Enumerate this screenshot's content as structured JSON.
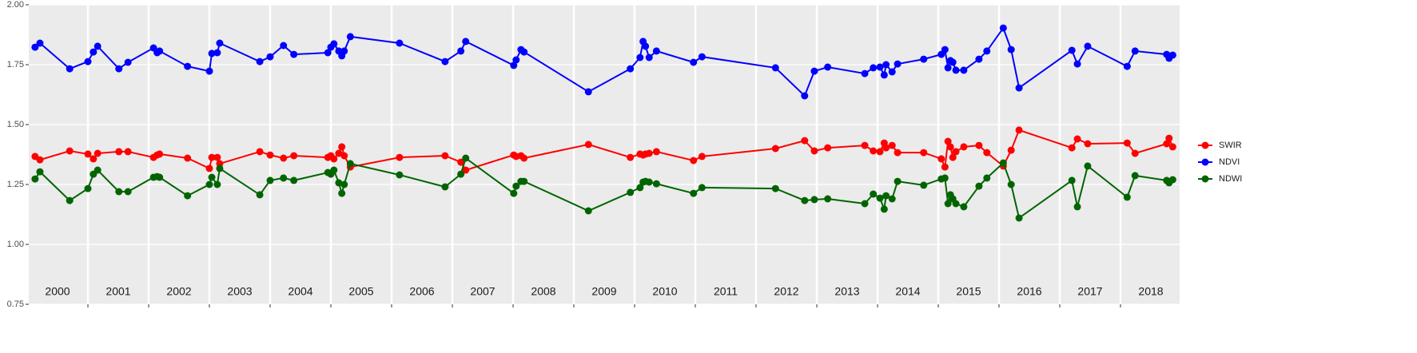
{
  "chart_data": {
    "type": "line",
    "grid": true,
    "legend": "right",
    "xlim": [
      2000,
      2019
    ],
    "xticks": [
      2001,
      2002,
      2003,
      2004,
      2005,
      2006,
      2007,
      2008,
      2009,
      2010,
      2011,
      2012,
      2013,
      2014,
      2015,
      2016,
      2017,
      2018
    ],
    "year_labels": [
      {
        "value": 2000.5,
        "label": "2000"
      },
      {
        "value": 2001.5,
        "label": "2001"
      },
      {
        "value": 2002.5,
        "label": "2002"
      },
      {
        "value": 2003.5,
        "label": "2003"
      },
      {
        "value": 2004.5,
        "label": "2004"
      },
      {
        "value": 2005.5,
        "label": "2005"
      },
      {
        "value": 2006.5,
        "label": "2006"
      },
      {
        "value": 2007.5,
        "label": "2007"
      },
      {
        "value": 2008.5,
        "label": "2008"
      },
      {
        "value": 2009.5,
        "label": "2009"
      },
      {
        "value": 2010.5,
        "label": "2010"
      },
      {
        "value": 2011.5,
        "label": "2011"
      },
      {
        "value": 2012.5,
        "label": "2012"
      },
      {
        "value": 2013.5,
        "label": "2013"
      },
      {
        "value": 2014.5,
        "label": "2014"
      },
      {
        "value": 2015.5,
        "label": "2015"
      },
      {
        "value": 2016.5,
        "label": "2016"
      },
      {
        "value": 2017.5,
        "label": "2017"
      },
      {
        "value": 2018.5,
        "label": "2018"
      }
    ],
    "ylim": [
      0.75,
      2.0
    ],
    "yticks": [
      {
        "value": 0.75,
        "label": "0.75"
      },
      {
        "value": 1,
        "label": "1.00"
      },
      {
        "value": 1.25,
        "label": "1.25"
      },
      {
        "value": 1.5,
        "label": "1.50"
      },
      {
        "value": 1.75,
        "label": "1.75"
      },
      {
        "value": 2,
        "label": "2.00"
      }
    ],
    "x": [
      2000.13,
      2000.21,
      2000.7,
      2001.0,
      2001.09,
      2001.16,
      2001.51,
      2001.66,
      2002.08,
      2002.14,
      2002.18,
      2002.64,
      2003.0,
      2003.04,
      2003.13,
      2003.17,
      2003.83,
      2004.0,
      2004.22,
      2004.39,
      2004.95,
      2005.0,
      2005.05,
      2005.13,
      2005.18,
      2005.22,
      2005.32,
      2006.13,
      2006.88,
      2007.14,
      2007.22,
      2008.01,
      2008.05,
      2008.13,
      2008.18,
      2009.24,
      2009.93,
      2010.09,
      2010.14,
      2010.18,
      2010.24,
      2010.36,
      2010.97,
      2011.11,
      2012.32,
      2012.8,
      2012.96,
      2013.18,
      2013.79,
      2013.93,
      2014.04,
      2014.11,
      2014.14,
      2014.24,
      2014.33,
      2014.76,
      2015.05,
      2015.11,
      2015.16,
      2015.2,
      2015.24,
      2015.29,
      2015.42,
      2015.67,
      2015.8,
      2016.07,
      2016.2,
      2016.33,
      2017.2,
      2017.29,
      2017.46,
      2018.11,
      2018.24,
      2018.76,
      2018.8,
      2018.86
    ],
    "series": [
      {
        "name": "SWIR",
        "color": "#ff0000",
        "values": [
          1.367,
          1.353,
          1.39,
          1.377,
          1.357,
          1.38,
          1.387,
          1.387,
          1.363,
          1.373,
          1.377,
          1.36,
          1.317,
          1.363,
          1.363,
          1.337,
          1.387,
          1.373,
          1.36,
          1.37,
          1.363,
          1.37,
          1.357,
          1.38,
          1.407,
          1.37,
          1.323,
          1.363,
          1.37,
          1.343,
          1.31,
          1.373,
          1.367,
          1.37,
          1.36,
          1.417,
          1.363,
          1.377,
          1.373,
          1.377,
          1.38,
          1.387,
          1.35,
          1.367,
          1.4,
          1.433,
          1.39,
          1.403,
          1.413,
          1.39,
          1.387,
          1.423,
          1.403,
          1.413,
          1.383,
          1.383,
          1.357,
          1.323,
          1.43,
          1.407,
          1.363,
          1.387,
          1.407,
          1.413,
          1.383,
          1.327,
          1.393,
          1.477,
          1.403,
          1.44,
          1.42,
          1.423,
          1.38,
          1.42,
          1.443,
          1.407
        ]
      },
      {
        "name": "NDVI",
        "color": "#0000ff",
        "values": [
          1.823,
          1.84,
          1.733,
          1.763,
          1.803,
          1.827,
          1.733,
          1.76,
          1.82,
          1.8,
          1.807,
          1.743,
          1.723,
          1.797,
          1.8,
          1.84,
          1.763,
          1.783,
          1.83,
          1.793,
          1.8,
          1.823,
          1.837,
          1.807,
          1.787,
          1.807,
          1.867,
          1.84,
          1.763,
          1.807,
          1.847,
          1.747,
          1.77,
          1.813,
          1.803,
          1.637,
          1.733,
          1.78,
          1.847,
          1.827,
          1.78,
          1.807,
          1.76,
          1.783,
          1.737,
          1.62,
          1.723,
          1.74,
          1.713,
          1.737,
          1.74,
          1.707,
          1.75,
          1.72,
          1.753,
          1.773,
          1.793,
          1.813,
          1.737,
          1.767,
          1.76,
          1.727,
          1.727,
          1.773,
          1.807,
          1.903,
          1.813,
          1.653,
          1.81,
          1.753,
          1.827,
          1.743,
          1.807,
          1.793,
          1.777,
          1.79
        ]
      },
      {
        "name": "NDWI",
        "color": "#006400",
        "values": [
          1.273,
          1.303,
          1.183,
          1.233,
          1.293,
          1.31,
          1.22,
          1.22,
          1.28,
          1.283,
          1.28,
          1.203,
          1.25,
          1.28,
          1.25,
          1.317,
          1.207,
          1.267,
          1.277,
          1.267,
          1.3,
          1.293,
          1.31,
          1.257,
          1.213,
          1.25,
          1.337,
          1.29,
          1.24,
          1.293,
          1.36,
          1.213,
          1.243,
          1.263,
          1.263,
          1.14,
          1.217,
          1.237,
          1.26,
          1.263,
          1.26,
          1.253,
          1.213,
          1.237,
          1.233,
          1.183,
          1.187,
          1.19,
          1.17,
          1.21,
          1.193,
          1.147,
          1.203,
          1.19,
          1.263,
          1.247,
          1.273,
          1.277,
          1.17,
          1.207,
          1.19,
          1.17,
          1.157,
          1.243,
          1.277,
          1.34,
          1.25,
          1.11,
          1.267,
          1.157,
          1.327,
          1.197,
          1.287,
          1.267,
          1.257,
          1.27
        ]
      }
    ]
  }
}
